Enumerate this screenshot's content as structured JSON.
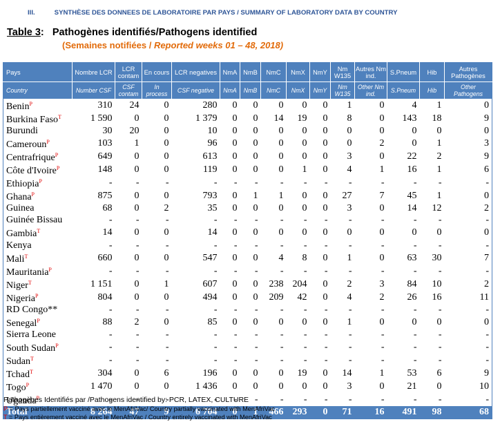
{
  "header": {
    "section_number": "III.",
    "section_title": "SYNTHÈSE DES DONNEES DE LABORATOIRE PAR PAYS / SUMMARY OF LABORATORY DATA BY COUNTRY",
    "table_label": "Table 3",
    "table_title": "Pathogènes identifiés/Pathogens identified",
    "subtitle_fr": "(Semaines notifiées / ",
    "subtitle_en": "Reported weeks 01 – 48, 2018)"
  },
  "table": {
    "columns": [
      {
        "fr": "Pays",
        "en": "Country"
      },
      {
        "fr": "Nombre LCR",
        "en": "Number CSF"
      },
      {
        "fr": "LCR contam",
        "en": "CSF contam"
      },
      {
        "fr": "En cours",
        "en": "In process"
      },
      {
        "fr": "LCR negatives",
        "en": "CSF negative"
      },
      {
        "fr": "NmA",
        "en": "NmA"
      },
      {
        "fr": "NmB",
        "en": "NmB"
      },
      {
        "fr": "NmC",
        "en": "NmC"
      },
      {
        "fr": "NmX",
        "en": "NmX"
      },
      {
        "fr": "NmY",
        "en": "NmY"
      },
      {
        "fr": "Nm W135",
        "en": "Nm W135"
      },
      {
        "fr": "Autres Nm ind.",
        "en": "Other Nm ind."
      },
      {
        "fr": "S.Pneum",
        "en": "S.Pneum"
      },
      {
        "fr": "Hib",
        "en": "Hib"
      },
      {
        "fr": "Autres Pathogènes",
        "en": "Other Pathogens"
      }
    ],
    "rows": [
      {
        "country": "Benin",
        "mark": "P",
        "values": [
          "310",
          "24",
          "0",
          "280",
          "0",
          "0",
          "0",
          "0",
          "0",
          "1",
          "0",
          "4",
          "1",
          "0"
        ]
      },
      {
        "country": "Burkina Faso",
        "mark": "T",
        "values": [
          "1 590",
          "0",
          "0",
          "1 379",
          "0",
          "0",
          "14",
          "19",
          "0",
          "8",
          "0",
          "143",
          "18",
          "9"
        ]
      },
      {
        "country": "Burundi",
        "values": [
          "30",
          "20",
          "0",
          "10",
          "0",
          "0",
          "0",
          "0",
          "0",
          "0",
          "0",
          "0",
          "0",
          "0"
        ]
      },
      {
        "country": "Cameroun",
        "mark": "P",
        "values": [
          "103",
          "1",
          "0",
          "96",
          "0",
          "0",
          "0",
          "0",
          "0",
          "0",
          "2",
          "0",
          "1",
          "3"
        ]
      },
      {
        "country": "Centrafrique",
        "mark": "P",
        "values": [
          "649",
          "0",
          "0",
          "613",
          "0",
          "0",
          "0",
          "0",
          "0",
          "3",
          "0",
          "22",
          "2",
          "9"
        ]
      },
      {
        "country": "Côte d'Ivoire",
        "mark": "P",
        "values": [
          "148",
          "0",
          "0",
          "119",
          "0",
          "0",
          "0",
          "1",
          "0",
          "4",
          "1",
          "16",
          "1",
          "6"
        ]
      },
      {
        "country": "Ethiopia",
        "mark": "P",
        "values": [
          "-",
          "-",
          "-",
          "-",
          "-",
          "-",
          "-",
          "-",
          "-",
          "-",
          "-",
          "-",
          "-",
          "-"
        ]
      },
      {
        "country": "Ghana",
        "mark": "P",
        "values": [
          "875",
          "0",
          "0",
          "793",
          "0",
          "1",
          "1",
          "0",
          "0",
          "27",
          "7",
          "45",
          "1",
          "0"
        ]
      },
      {
        "country": "Guinea",
        "values": [
          "68",
          "0",
          "2",
          "35",
          "0",
          "0",
          "0",
          "0",
          "0",
          "3",
          "0",
          "14",
          "12",
          "2"
        ]
      },
      {
        "country": "Guinée Bissau",
        "values": [
          "-",
          "-",
          "-",
          "-",
          "-",
          "-",
          "-",
          "-",
          "-",
          "-",
          "-",
          "-",
          "-",
          "-"
        ]
      },
      {
        "country": "Gambia",
        "mark": "T",
        "values": [
          "14",
          "0",
          "0",
          "14",
          "0",
          "0",
          "0",
          "0",
          "0",
          "0",
          "0",
          "0",
          "0",
          "0"
        ]
      },
      {
        "country": "Kenya",
        "values": [
          "-",
          "-",
          "-",
          "-",
          "-",
          "-",
          "-",
          "-",
          "-",
          "-",
          "-",
          "-",
          "-",
          "-"
        ]
      },
      {
        "country": "Mali",
        "mark": "T",
        "values": [
          "660",
          "0",
          "0",
          "547",
          "0",
          "0",
          "4",
          "8",
          "0",
          "1",
          "0",
          "63",
          "30",
          "7"
        ]
      },
      {
        "country": "Mauritania",
        "mark": "P",
        "values": [
          "-",
          "-",
          "-",
          "-",
          "-",
          "-",
          "-",
          "-",
          "-",
          "-",
          "-",
          "-",
          "-",
          "-"
        ]
      },
      {
        "country": "Niger",
        "mark": "T",
        "values": [
          "1 151",
          "0",
          "1",
          "607",
          "0",
          "0",
          "238",
          "204",
          "0",
          "2",
          "3",
          "84",
          "10",
          "2"
        ]
      },
      {
        "country": "Nigeria",
        "mark": "P",
        "values": [
          "804",
          "0",
          "0",
          "494",
          "0",
          "0",
          "209",
          "42",
          "0",
          "4",
          "2",
          "26",
          "16",
          "11"
        ]
      },
      {
        "country": "RD Congo**",
        "values": [
          "-",
          "-",
          "-",
          "-",
          "-",
          "-",
          "-",
          "-",
          "-",
          "-",
          "-",
          "-",
          "-",
          "-"
        ]
      },
      {
        "country": "Senegal",
        "mark": "P",
        "values": [
          "88",
          "2",
          "0",
          "85",
          "0",
          "0",
          "0",
          "0",
          "0",
          "1",
          "0",
          "0",
          "0",
          "0"
        ]
      },
      {
        "country": "Sierra Leone",
        "values": [
          "-",
          "-",
          "-",
          "-",
          "-",
          "-",
          "-",
          "-",
          "-",
          "-",
          "-",
          "-",
          "-",
          "-"
        ]
      },
      {
        "country": "South Sudan",
        "mark": "P",
        "values": [
          "-",
          "-",
          "-",
          "-",
          "-",
          "-",
          "-",
          "-",
          "-",
          "-",
          "-",
          "-",
          "-",
          "-"
        ]
      },
      {
        "country": "Sudan",
        "mark": "T",
        "values": [
          "-",
          "-",
          "-",
          "-",
          "-",
          "-",
          "-",
          "-",
          "-",
          "-",
          "-",
          "-",
          "-",
          "-"
        ]
      },
      {
        "country": "Tchad",
        "mark": "T",
        "values": [
          "304",
          "0",
          "6",
          "196",
          "0",
          "0",
          "0",
          "19",
          "0",
          "14",
          "1",
          "53",
          "6",
          "9"
        ]
      },
      {
        "country": "Togo",
        "mark": "P",
        "values": [
          "1 470",
          "0",
          "0",
          "1 436",
          "0",
          "0",
          "0",
          "0",
          "0",
          "3",
          "0",
          "21",
          "0",
          "10"
        ]
      },
      {
        "country": "Uganda",
        "mark": "P",
        "values": [
          "-",
          "-",
          "-",
          "-",
          "-",
          "-",
          "-",
          "-",
          "-",
          "-",
          "-",
          "-",
          "-",
          "-"
        ]
      }
    ],
    "total": {
      "label": "Total",
      "values": [
        "8 264",
        "47",
        "9",
        "6 704",
        "0",
        "1",
        "466",
        "293",
        "0",
        "71",
        "16",
        "491",
        "98",
        "68"
      ]
    }
  },
  "footnotes": {
    "methods": "Pathogènes Identifiés par /Pathogens identified by: PCR, LATEX, CULTURE",
    "p_key": "P",
    "p_text": " = Pays partiellement vacciné avec le MenAfriVac/ Country partially vaccinated with MenAfriVac",
    "t_key": "T",
    "t_text": " = Pays entièrement vacciné avec le MenAfriVac / Country entirely vaccinated with MenAfriVac"
  }
}
